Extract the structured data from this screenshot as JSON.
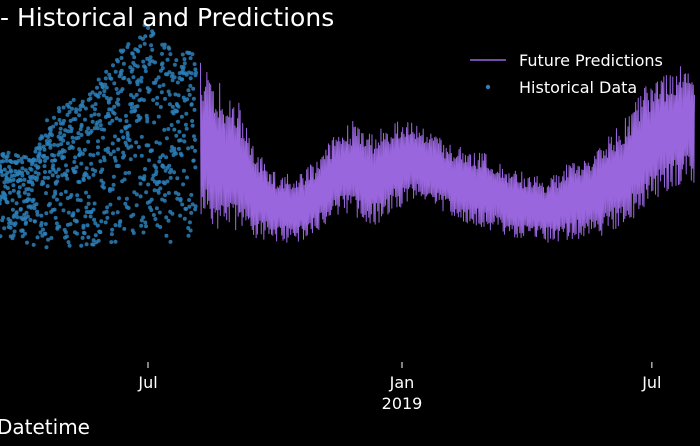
{
  "chart_data": {
    "type": "line",
    "title": "- Historical and Predictions",
    "xlabel": "Datetime",
    "ylabel": "",
    "grid": false,
    "legend_position": "top-right",
    "background": "#000000",
    "x_ticks": [
      {
        "label": "Jul",
        "sublabel": "",
        "date": "2018-07-01"
      },
      {
        "label": "Jan",
        "sublabel": "2019",
        "date": "2019-01-01"
      },
      {
        "label": "Jul",
        "sublabel": "",
        "date": "2019-07-01"
      }
    ],
    "series": [
      {
        "name": "Future Predictions",
        "kind": "line",
        "color": "#9966dd",
        "envelope": {
          "x": [
            "2018-08-08",
            "2018-08-22",
            "2018-09-05",
            "2018-09-19",
            "2018-10-03",
            "2018-10-17",
            "2018-10-31",
            "2018-11-14",
            "2018-11-28",
            "2018-12-12",
            "2018-12-26",
            "2019-01-09",
            "2019-01-23",
            "2019-02-06",
            "2019-02-20",
            "2019-03-06",
            "2019-03-20",
            "2019-04-03",
            "2019-04-17",
            "2019-05-01",
            "2019-05-15",
            "2019-05-29",
            "2019-06-12",
            "2019-06-26",
            "2019-07-10",
            "2019-07-24",
            "2019-08-01"
          ],
          "upper": [
            155,
            145,
            135,
            110,
            100,
            100,
            107,
            120,
            127,
            120,
            128,
            125,
            120,
            115,
            112,
            110,
            103,
            100,
            98,
            105,
            110,
            118,
            128,
            143,
            150,
            154,
            153
          ],
          "lower": [
            73,
            72,
            71,
            68,
            66,
            66,
            70,
            80,
            78,
            74,
            81,
            88,
            84,
            78,
            75,
            72,
            69,
            67,
            66,
            67,
            68,
            70,
            74,
            83,
            90,
            96,
            94
          ]
        }
      },
      {
        "name": "Historical Data",
        "kind": "scatter",
        "color": "#2c7fb8",
        "envelope": {
          "x": [
            "2018-03-10",
            "2018-03-24",
            "2018-04-07",
            "2018-04-21",
            "2018-05-05",
            "2018-05-19",
            "2018-06-02",
            "2018-06-16",
            "2018-06-30",
            "2018-07-14",
            "2018-07-28",
            "2018-08-05"
          ],
          "upper": [
            115,
            110,
            108,
            130,
            136,
            140,
            155,
            165,
            175,
            165,
            160,
            163
          ],
          "lower": [
            70,
            68,
            65,
            63,
            62,
            64,
            66,
            67,
            70,
            66,
            67,
            68
          ]
        }
      }
    ]
  }
}
